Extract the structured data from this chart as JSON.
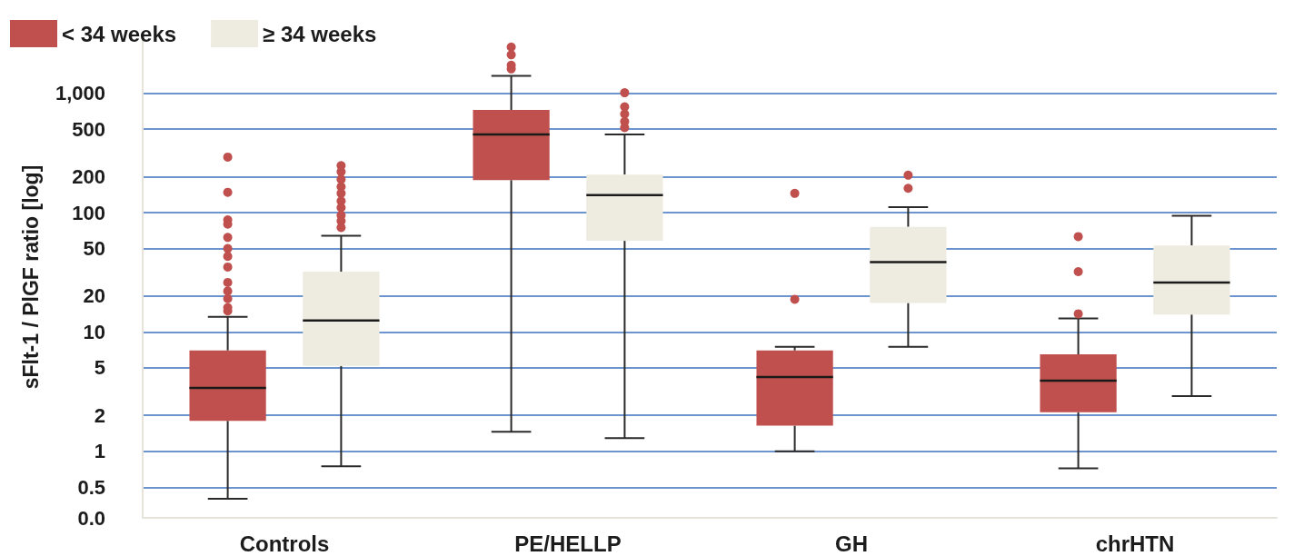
{
  "chart_data": {
    "type": "box",
    "categories": [
      "Controls",
      "PE/HELLP",
      "GH",
      "chrHTN"
    ],
    "ylabel": "sFlt-1 / PlGF ratio [log]",
    "log": true,
    "ylim": [
      0,
      3000
    ],
    "yticks": [
      {
        "value": 0,
        "label": "0.0"
      },
      0.5,
      1,
      2,
      5,
      10,
      20,
      50,
      100,
      200,
      500,
      {
        "value": 1000,
        "label": "1,000"
      }
    ],
    "grid": "y",
    "legend": "top left",
    "series": [
      {
        "name": "< 34 weeks",
        "color": "#c0504d",
        "boxes": [
          {
            "low": 0.4,
            "q1": 1.8,
            "median": 3.4,
            "q3": 7.0,
            "high": 13.4,
            "outliers": [
              292,
              148,
              87,
              80,
              62,
              50,
              43,
              35,
              26,
              22,
              19,
              16,
              15
            ]
          },
          {
            "low": 1.46,
            "q1": 187,
            "median": 451,
            "q3": 725,
            "high": 1400,
            "outliers": [
              2440,
              2100,
              1720,
              1600
            ]
          },
          {
            "low": 1.0,
            "q1": 1.64,
            "median": 4.2,
            "q3": 7.0,
            "high": 7.5,
            "outliers": [
              145,
              18.8
            ]
          },
          {
            "low": 0.72,
            "q1": 2.13,
            "median": 3.9,
            "q3": 6.5,
            "high": 13.0,
            "outliers": [
              63,
              32,
              14.2
            ]
          }
        ]
      },
      {
        "name": "≥ 34 weeks",
        "color": "#eeece1",
        "boxes": [
          {
            "low": 0.75,
            "q1": 5.2,
            "median": 12.5,
            "q3": 32,
            "high": 64,
            "outliers": [
              248,
              220,
              190,
              165,
              145,
              125,
              110,
              95,
              85,
              75
            ]
          },
          {
            "low": 1.29,
            "q1": 58,
            "median": 140,
            "q3": 208,
            "high": 451,
            "outliers": [
              1010,
              770,
              670,
              580,
              515
            ]
          },
          {
            "low": 7.5,
            "q1": 17.5,
            "median": 38.5,
            "q3": 76,
            "high": 111,
            "outliers": [
              206,
              160
            ]
          },
          {
            "low": 2.9,
            "q1": 14,
            "median": 26,
            "q3": 53,
            "high": 94
          }
        ]
      }
    ]
  }
}
